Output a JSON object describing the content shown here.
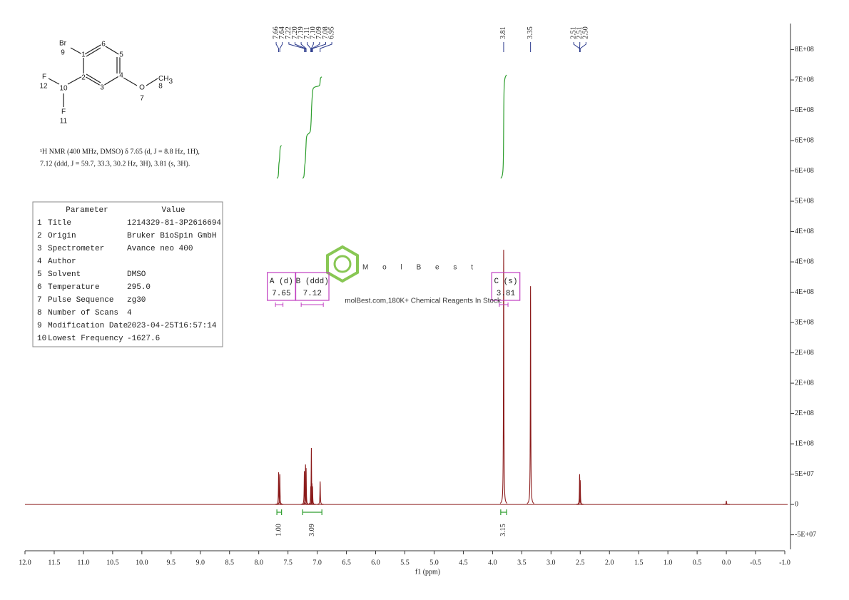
{
  "chart_data": {
    "type": "nmr",
    "x_label": "f1 (ppm)",
    "xlim": [
      12.0,
      -1.0
    ],
    "xticks": [
      {
        "value": 12,
        "label": "12.0"
      },
      11.5,
      {
        "value": 11,
        "label": "11.0"
      },
      10.5,
      {
        "value": 10,
        "label": "10.0"
      },
      9.5,
      {
        "value": 9,
        "label": "9.0"
      },
      8.5,
      {
        "value": 8,
        "label": "8.0"
      },
      7.5,
      {
        "value": 7,
        "label": "7.0"
      },
      6.5,
      {
        "value": 6,
        "label": "6.0"
      },
      5.5,
      {
        "value": 5,
        "label": "5.0"
      },
      4.5,
      {
        "value": 4,
        "label": "4.0"
      },
      3.5,
      {
        "value": 3,
        "label": "3.0"
      },
      2.5,
      {
        "value": 2,
        "label": "2.0"
      },
      1.5,
      {
        "value": 1,
        "label": "1.0"
      },
      0.5,
      {
        "value": 0,
        "label": "0.0"
      },
      -0.5,
      {
        "value": -1,
        "label": "-1.0"
      }
    ],
    "ylim": [
      -74000000,
      793000000
    ],
    "yticks": [
      {
        "value": -50000000,
        "label": "-5E+07"
      },
      0,
      {
        "value": 50000000,
        "label": "5E+07"
      },
      {
        "value": 100000000,
        "label": "1E+08"
      },
      {
        "value": 150000000,
        "label": "2E+08"
      },
      {
        "value": 200000000,
        "label": "2E+08"
      },
      {
        "value": 250000000,
        "label": "2E+08"
      },
      {
        "value": 300000000,
        "label": "3E+08"
      },
      {
        "value": 350000000,
        "label": "4E+08"
      },
      {
        "value": 400000000,
        "label": "4E+08"
      },
      {
        "value": 450000000,
        "label": "4E+08"
      },
      {
        "value": 500000000,
        "label": "5E+08"
      },
      {
        "value": 550000000,
        "label": "6E+08"
      },
      {
        "value": 600000000,
        "label": "6E+08"
      },
      {
        "value": 650000000,
        "label": "6E+08"
      },
      {
        "value": 700000000,
        "label": "7E+08"
      },
      {
        "value": 750000000,
        "label": "8E+08"
      }
    ],
    "color": "#8b1a1a",
    "peaks": {
      "x": [
        7.66,
        7.64,
        7.22,
        7.2,
        7.19,
        7.11,
        7.1,
        7.09,
        7.08,
        6.95,
        3.81,
        3.35,
        2.51,
        2.5,
        0.0
      ],
      "values": [
        53000000,
        50000000,
        55000000,
        66000000,
        60000000,
        30000000,
        93000000,
        35000000,
        30000000,
        38000000,
        420000000,
        360000000,
        50000000,
        40000000,
        6000000
      ]
    },
    "peak_labels": [
      7.66,
      7.64,
      7.22,
      {
        "value": 7.2,
        "label": "7.20"
      },
      7.19,
      7.11,
      {
        "value": 7.1,
        "label": "7.10"
      },
      7.09,
      7.08,
      6.95,
      3.81,
      3.35,
      2.51,
      2.51,
      {
        "value": 2.5,
        "label": "2.50"
      }
    ],
    "label_color": "#2b3a8c",
    "integrals": {
      "ranges": [
        [
          7.69,
          7.61
        ],
        [
          7.25,
          6.92
        ],
        [
          3.86,
          3.76
        ]
      ],
      "values": [
        1.0,
        3.09,
        3.15
      ],
      "value_labels": [
        "1.00",
        "3.09",
        "3.15"
      ],
      "color": "#2e9e2e"
    },
    "multiplets": [
      {
        "name": "A (d)",
        "shift": 7.65
      },
      {
        "name": "B (ddd)",
        "shift": 7.12
      },
      {
        "name": "C (s)",
        "shift": 3.81
      }
    ],
    "multiplet_color": "#c03cc0"
  },
  "structure": {
    "atoms": [
      "Br",
      "9",
      "1",
      "6",
      "5",
      "4",
      "3",
      "2",
      "10",
      "F",
      "12",
      "F",
      "11",
      "O",
      "7",
      "8"
    ],
    "methyl": {
      "text": "CH",
      "sub": "3"
    }
  },
  "description": [
    "¹H NMR (400 MHz, DMSO) δ 7.65 (d, J = 8.8 Hz, 1H),",
    "7.12 (ddd, J = 59.7, 33.3, 30.2 Hz, 3H), 3.81 (s, 3H)."
  ],
  "parameters": {
    "header": [
      "Parameter",
      "Value"
    ],
    "rows": [
      [
        "1",
        "Title",
        "1214329-81-3P2616694"
      ],
      [
        "2",
        "Origin",
        "Bruker BioSpin GmbH"
      ],
      [
        "3",
        "Spectrometer",
        "Avance neo 400"
      ],
      [
        "4",
        "Author",
        ""
      ],
      [
        "5",
        "Solvent",
        "DMSO"
      ],
      [
        "6",
        "Temperature",
        "295.0"
      ],
      [
        "7",
        "Pulse Sequence",
        "zg30"
      ],
      [
        "8",
        "Number of Scans",
        "4"
      ],
      [
        "9",
        "Modification Date",
        "2023-04-25T16:57:14"
      ],
      [
        "10",
        "Lowest Frequency",
        "-1627.6"
      ]
    ]
  },
  "watermark": {
    "brand": "MolBest",
    "tagline": "molBest.com,180K+ Chemical Reagents In Stock."
  }
}
